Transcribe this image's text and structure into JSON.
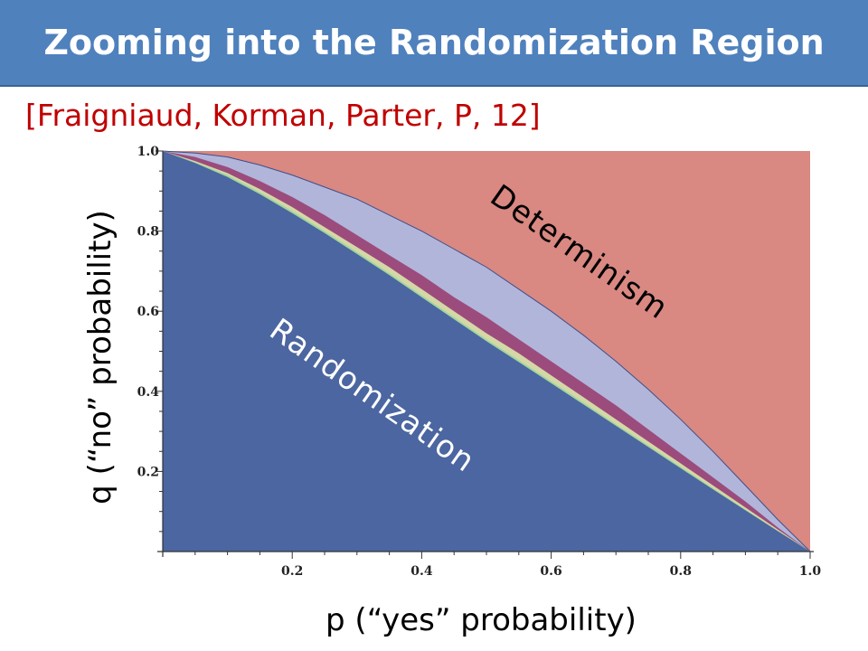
{
  "slide": {
    "title": "Zooming into the Randomization Region",
    "citation": "[Fraigniaud, Korman, Parter, P,  12]"
  },
  "colors": {
    "title_bar": "#4f81bd",
    "citation": "#c00000",
    "determinism_region": "#d98882",
    "randomization_region": "#4b66a0",
    "band_lavender": "#b2b5da",
    "band_magenta": "#9b4c7c",
    "band_yellow": "#d6d7a6",
    "band_green": "#9fd6a0"
  },
  "chart_data": {
    "type": "area",
    "xlabel": "p (“yes” probability)",
    "ylabel": "q (“no” probability)",
    "xlim": [
      0,
      1
    ],
    "ylim": [
      0,
      1
    ],
    "x_ticks": [
      "0.2",
      "0.4",
      "0.6",
      "0.8",
      "1.0"
    ],
    "y_ticks": [
      "0.2",
      "0.4",
      "0.6",
      "0.8",
      "1.0"
    ],
    "region_labels": {
      "determinism": "Determinism",
      "randomization": "Randomization"
    },
    "x": [
      0,
      0.05,
      0.1,
      0.15,
      0.2,
      0.25,
      0.3,
      0.35,
      0.4,
      0.45,
      0.5,
      0.55,
      0.6,
      0.65,
      0.7,
      0.75,
      0.8,
      0.85,
      0.9,
      0.95,
      1.0
    ],
    "series": [
      {
        "values": [
          1.0,
          0.995,
          0.985,
          0.965,
          0.94,
          0.91,
          0.88,
          0.84,
          0.8,
          0.755,
          0.71,
          0.655,
          0.6,
          0.54,
          0.475,
          0.405,
          0.33,
          0.25,
          0.165,
          0.08,
          0.0
        ]
      },
      {
        "values": [
          1.0,
          0.985,
          0.96,
          0.925,
          0.885,
          0.84,
          0.79,
          0.74,
          0.69,
          0.635,
          0.585,
          0.53,
          0.475,
          0.42,
          0.365,
          0.305,
          0.245,
          0.185,
          0.125,
          0.06,
          0.0
        ]
      },
      {
        "values": [
          1.0,
          0.975,
          0.945,
          0.905,
          0.86,
          0.81,
          0.76,
          0.71,
          0.655,
          0.6,
          0.545,
          0.495,
          0.44,
          0.385,
          0.33,
          0.275,
          0.22,
          0.165,
          0.11,
          0.055,
          0.0
        ]
      },
      {
        "values": [
          1.0,
          0.972,
          0.94,
          0.897,
          0.85,
          0.8,
          0.748,
          0.695,
          0.64,
          0.585,
          0.53,
          0.478,
          0.425,
          0.372,
          0.318,
          0.265,
          0.212,
          0.158,
          0.105,
          0.052,
          0.0
        ]
      },
      {
        "values": [
          1.0,
          0.97,
          0.935,
          0.892,
          0.845,
          0.795,
          0.743,
          0.69,
          0.635,
          0.58,
          0.525,
          0.473,
          0.42,
          0.367,
          0.314,
          0.261,
          0.208,
          0.155,
          0.103,
          0.051,
          0.0
        ]
      }
    ]
  }
}
